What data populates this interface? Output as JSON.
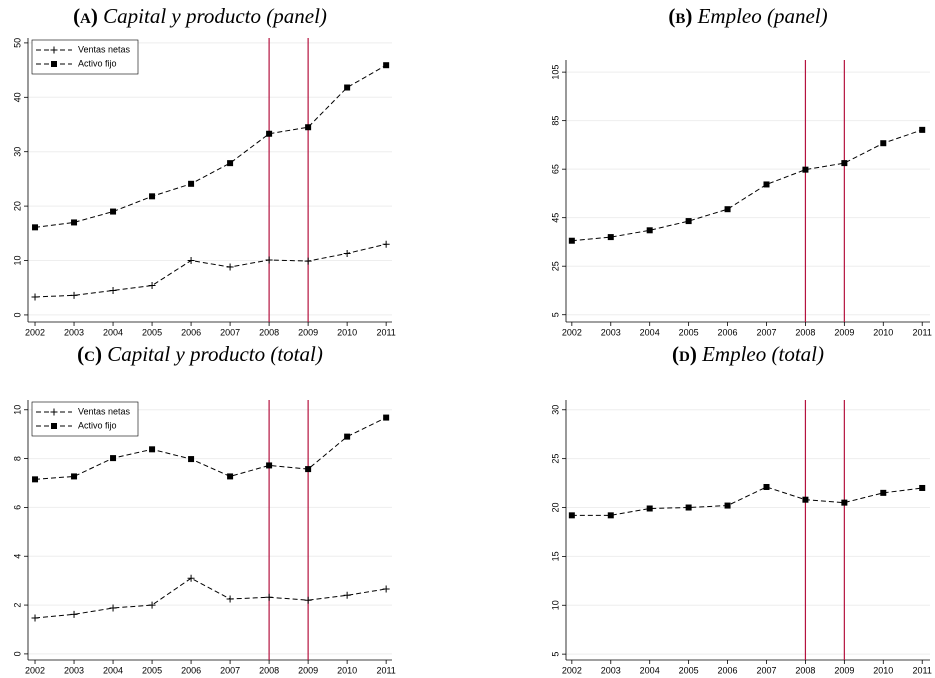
{
  "chart_data": [
    {
      "type": "line",
      "label": "(a)",
      "title": "Capital y producto (panel)",
      "x": [
        2002,
        2003,
        2004,
        2005,
        2006,
        2007,
        2008,
        2009,
        2010,
        2011
      ],
      "xlim": [
        2001.82,
        2011.15
      ],
      "xticks": [
        2002,
        2003,
        2004,
        2005,
        2006,
        2007,
        2008,
        2009,
        2010,
        2011
      ],
      "ylim": [
        -1.3,
        50.9
      ],
      "yticks": [
        0,
        10,
        20,
        30,
        40,
        50
      ],
      "grid": true,
      "legend": "top-left",
      "line_style": "dashed",
      "vlines": [
        2008,
        2009
      ],
      "vline_color": "#b5123f",
      "series": [
        {
          "name": "Ventas netas",
          "color": "#000000",
          "marker": "plus",
          "values": [
            3.3,
            3.6,
            4.5,
            5.4,
            10.0,
            8.8,
            10.1,
            9.9,
            11.3,
            13.0
          ]
        },
        {
          "name": "Activo fijo",
          "color": "#000000",
          "marker": "square",
          "values": [
            16.1,
            17.0,
            19.0,
            21.8,
            24.1,
            27.9,
            33.3,
            34.5,
            41.8,
            45.9
          ]
        }
      ]
    },
    {
      "type": "line",
      "label": "(b)",
      "title": "Empleo (panel)",
      "x": [
        2002,
        2003,
        2004,
        2005,
        2006,
        2007,
        2008,
        2009,
        2010,
        2011
      ],
      "xlim": [
        2001.85,
        2011.2
      ],
      "xticks": [
        2002,
        2003,
        2004,
        2005,
        2006,
        2007,
        2008,
        2009,
        2010,
        2011
      ],
      "ylim": [
        2,
        110
      ],
      "yticks": [
        5,
        25,
        45,
        65,
        85,
        105
      ],
      "grid": true,
      "line_style": "dashed",
      "vlines": [
        2008,
        2009
      ],
      "vline_color": "#b5123f",
      "series": [
        {
          "color": "#000000",
          "marker": "square",
          "values": [
            35.5,
            37.0,
            39.8,
            43.6,
            48.5,
            58.7,
            64.8,
            67.5,
            75.7,
            81.2
          ]
        }
      ]
    },
    {
      "type": "line",
      "label": "(c)",
      "title": "Capital y producto (total)",
      "x": [
        2002,
        2003,
        2004,
        2005,
        2006,
        2007,
        2008,
        2009,
        2010,
        2011
      ],
      "xlim": [
        2001.82,
        2011.15
      ],
      "xticks": [
        2002,
        2003,
        2004,
        2005,
        2006,
        2007,
        2008,
        2009,
        2010,
        2011
      ],
      "ylim": [
        -0.25,
        10.4
      ],
      "yticks": [
        0,
        2,
        4,
        6,
        8,
        10
      ],
      "grid": true,
      "legend": "top-left",
      "line_style": "dashed",
      "vlines": [
        2008,
        2009
      ],
      "vline_color": "#b5123f",
      "series": [
        {
          "name": "Ventas netas",
          "color": "#000000",
          "marker": "plus",
          "values": [
            1.47,
            1.62,
            1.88,
            2.0,
            3.1,
            2.25,
            2.32,
            2.2,
            2.4,
            2.66
          ]
        },
        {
          "name": "Activo fijo",
          "color": "#000000",
          "marker": "square",
          "values": [
            7.15,
            7.27,
            8.02,
            8.38,
            7.98,
            7.27,
            7.72,
            7.57,
            8.9,
            9.68
          ]
        }
      ]
    },
    {
      "type": "line",
      "label": "(d)",
      "title": "Empleo (total)",
      "x": [
        2002,
        2003,
        2004,
        2005,
        2006,
        2007,
        2008,
        2009,
        2010,
        2011
      ],
      "xlim": [
        2001.85,
        2011.2
      ],
      "xticks": [
        2002,
        2003,
        2004,
        2005,
        2006,
        2007,
        2008,
        2009,
        2010,
        2011
      ],
      "ylim": [
        4.4,
        31
      ],
      "yticks": [
        5,
        10,
        15,
        20,
        25,
        30
      ],
      "grid": true,
      "line_style": "dashed",
      "vlines": [
        2008,
        2009
      ],
      "vline_color": "#b5123f",
      "series": [
        {
          "color": "#000000",
          "marker": "square",
          "values": [
            19.2,
            19.2,
            19.9,
            20.0,
            20.2,
            22.1,
            20.8,
            20.5,
            21.5,
            22.0
          ]
        }
      ]
    }
  ]
}
